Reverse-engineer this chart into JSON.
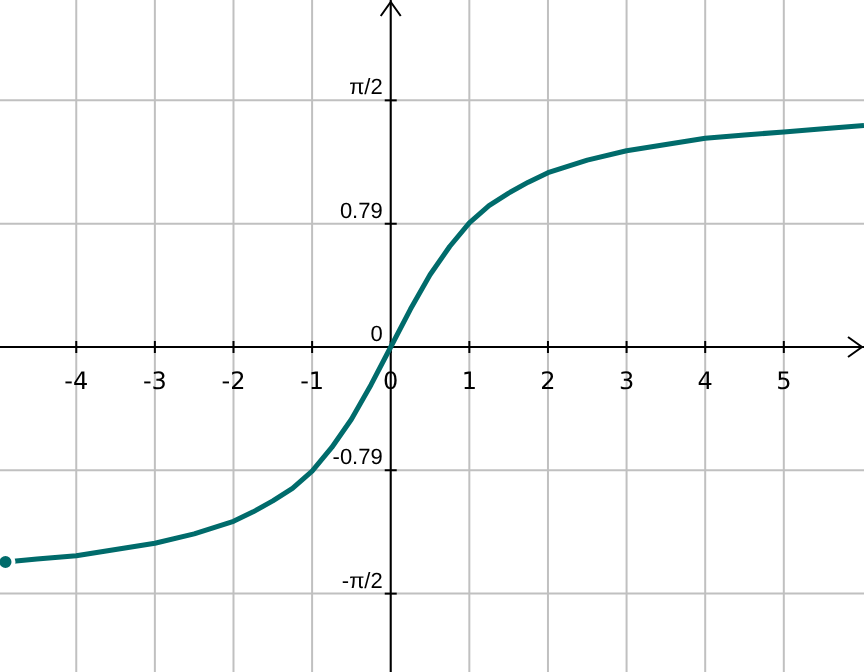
{
  "chart_data": {
    "type": "line",
    "x": [
      -4.9,
      -4.5,
      -4,
      -3.5,
      -3,
      -2.5,
      -2,
      -1.75,
      -1.5,
      -1.25,
      -1,
      -0.75,
      -0.5,
      -0.25,
      0,
      0.25,
      0.5,
      0.75,
      1,
      1.25,
      1.5,
      1.75,
      2,
      2.5,
      3,
      3.5,
      4,
      4.5,
      5,
      5.5,
      6.02
    ],
    "series": [
      {
        "color": "#006b6b",
        "values": [
          -1.37,
          -1.35,
          -1.33,
          -1.29,
          -1.25,
          -1.19,
          -1.11,
          -1.05,
          -0.98,
          -0.9,
          -0.79,
          -0.64,
          -0.46,
          -0.24,
          0,
          0.24,
          0.46,
          0.64,
          0.79,
          0.9,
          0.98,
          1.05,
          1.11,
          1.19,
          1.25,
          1.29,
          1.33,
          1.35,
          1.37,
          1.39,
          1.41
        ]
      }
    ],
    "xlim": [
      -4.97,
      6.02
    ],
    "ylim": [
      -2.07,
      2.21
    ],
    "xticks": [
      -4,
      -3,
      -2,
      -1,
      0,
      1,
      2,
      3,
      4,
      5
    ],
    "yticks": [
      {
        "value": -1.5708,
        "label": "-π/2"
      },
      {
        "value": -0.785,
        "label": "-0.79"
      },
      0,
      {
        "value": 0.785,
        "label": "0.79"
      },
      {
        "value": 1.5708,
        "label": "π/2"
      }
    ],
    "grid": true,
    "marker": "none",
    "line_style": "solid"
  }
}
